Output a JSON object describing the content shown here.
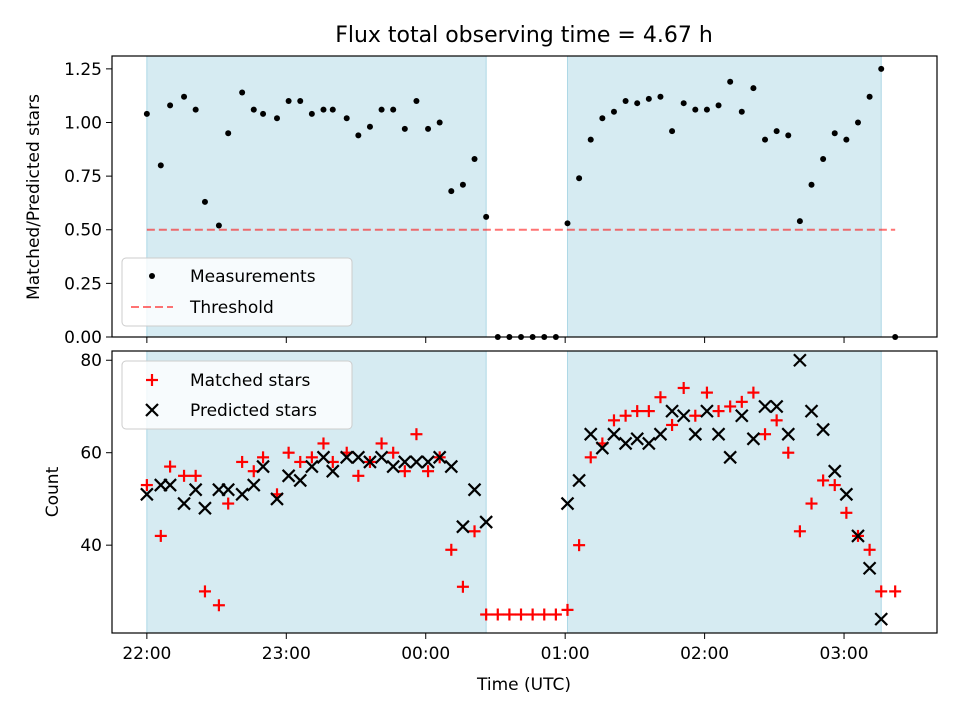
{
  "figure_title": "Flux total observing time = 4.67 h",
  "colors": {
    "shade": "#add8e6",
    "measurement": "#000000",
    "threshold": "#ff0000",
    "matched": "#ff0000",
    "predicted": "#000000"
  },
  "chart_data": [
    {
      "type": "scatter",
      "panel": "top",
      "ylabel": "Matched/Predicted stars",
      "ylim": [
        0,
        1.31
      ],
      "yticks": [
        "0.00",
        "0.25",
        "0.50",
        "0.75",
        "1.00",
        "1.25"
      ],
      "xlim": [
        "21:45",
        "03:40"
      ],
      "shaded_intervals": [
        [
          "22:00",
          "00:26"
        ],
        [
          "01:01",
          "03:16"
        ]
      ],
      "threshold": 0.5,
      "threshold_range": [
        "22:00",
        "03:22"
      ],
      "legend": {
        "position": "lower-left",
        "entries": [
          "Measurements",
          "Threshold"
        ]
      },
      "series": [
        {
          "name": "Measurements",
          "x": [
            "22:00",
            "22:06",
            "22:10",
            "22:16",
            "22:21",
            "22:25",
            "22:31",
            "22:35",
            "22:41",
            "22:46",
            "22:50",
            "22:56",
            "23:01",
            "23:06",
            "23:11",
            "23:16",
            "23:20",
            "23:26",
            "23:31",
            "23:36",
            "23:41",
            "23:46",
            "23:51",
            "23:56",
            "00:01",
            "00:06",
            "00:11",
            "00:16",
            "00:21",
            "00:26",
            "00:31",
            "00:36",
            "00:41",
            "00:46",
            "00:51",
            "00:56",
            "01:01",
            "01:06",
            "01:11",
            "01:16",
            "01:21",
            "01:26",
            "01:31",
            "01:36",
            "01:41",
            "01:46",
            "01:51",
            "01:56",
            "02:01",
            "02:06",
            "02:11",
            "02:16",
            "02:21",
            "02:26",
            "02:31",
            "02:36",
            "02:41",
            "02:46",
            "02:51",
            "02:56",
            "03:01",
            "03:06",
            "03:11",
            "03:16",
            "03:22"
          ],
          "y": [
            1.04,
            0.8,
            1.08,
            1.12,
            1.06,
            0.63,
            0.52,
            0.95,
            1.14,
            1.06,
            1.04,
            1.02,
            1.1,
            1.1,
            1.04,
            1.06,
            1.06,
            1.02,
            0.94,
            0.98,
            1.06,
            1.06,
            0.97,
            1.1,
            0.97,
            1.0,
            0.68,
            0.71,
            0.83,
            0.56,
            0.0,
            0.0,
            0.0,
            0.0,
            0.0,
            0.0,
            0.53,
            0.74,
            0.92,
            1.02,
            1.05,
            1.1,
            1.09,
            1.11,
            1.12,
            0.96,
            1.09,
            1.06,
            1.06,
            1.08,
            1.19,
            1.05,
            1.16,
            0.92,
            0.96,
            0.94,
            0.54,
            0.71,
            0.83,
            0.95,
            0.92,
            1.0,
            1.12,
            1.25,
            0.0
          ]
        }
      ]
    },
    {
      "type": "scatter",
      "panel": "bottom",
      "xlabel": "Time (UTC)",
      "ylabel": "Count",
      "ylim": [
        21,
        82
      ],
      "yticks": [
        "40",
        "60",
        "80"
      ],
      "xticks": [
        "22:00",
        "23:00",
        "00:00",
        "01:00",
        "02:00",
        "03:00"
      ],
      "xlim": [
        "21:45",
        "03:40"
      ],
      "shaded_intervals": [
        [
          "22:00",
          "00:26"
        ],
        [
          "01:01",
          "03:16"
        ]
      ],
      "legend": {
        "position": "upper-left",
        "entries": [
          "Matched stars",
          "Predicted stars"
        ]
      },
      "series": [
        {
          "name": "Matched stars",
          "x": [
            "22:00",
            "22:06",
            "22:10",
            "22:16",
            "22:21",
            "22:25",
            "22:31",
            "22:35",
            "22:41",
            "22:46",
            "22:50",
            "22:56",
            "23:01",
            "23:06",
            "23:11",
            "23:16",
            "23:20",
            "23:26",
            "23:31",
            "23:36",
            "23:41",
            "23:46",
            "23:51",
            "23:56",
            "00:01",
            "00:06",
            "00:11",
            "00:16",
            "00:21",
            "00:26",
            "00:31",
            "00:36",
            "00:41",
            "00:46",
            "00:51",
            "00:56",
            "01:01",
            "01:06",
            "01:11",
            "01:16",
            "01:21",
            "01:26",
            "01:31",
            "01:36",
            "01:41",
            "01:46",
            "01:51",
            "01:56",
            "02:01",
            "02:06",
            "02:11",
            "02:16",
            "02:21",
            "02:26",
            "02:31",
            "02:36",
            "02:41",
            "02:46",
            "02:51",
            "02:56",
            "03:01",
            "03:06",
            "03:11",
            "03:16",
            "03:22"
          ],
          "y": [
            53,
            42,
            57,
            55,
            55,
            30,
            27,
            49,
            58,
            56,
            59,
            51,
            60,
            58,
            59,
            62,
            58,
            60,
            55,
            58,
            62,
            60,
            56,
            64,
            56,
            59,
            39,
            31,
            43,
            25,
            25,
            25,
            25,
            25,
            25,
            25,
            26,
            40,
            59,
            62,
            67,
            68,
            69,
            69,
            72,
            66,
            74,
            68,
            73,
            69,
            70,
            71,
            73,
            64,
            67,
            60,
            43,
            49,
            54,
            53,
            47,
            42,
            39,
            30,
            30
          ]
        },
        {
          "name": "Predicted stars",
          "x": [
            "22:00",
            "22:06",
            "22:10",
            "22:16",
            "22:21",
            "22:25",
            "22:31",
            "22:35",
            "22:41",
            "22:46",
            "22:50",
            "22:56",
            "23:01",
            "23:06",
            "23:11",
            "23:16",
            "23:20",
            "23:26",
            "23:31",
            "23:36",
            "23:41",
            "23:46",
            "23:51",
            "23:56",
            "00:01",
            "00:06",
            "00:11",
            "00:16",
            "00:21",
            "00:26",
            "01:01",
            "01:06",
            "01:11",
            "01:16",
            "01:21",
            "01:26",
            "01:31",
            "01:36",
            "01:41",
            "01:46",
            "01:51",
            "01:56",
            "02:01",
            "02:06",
            "02:11",
            "02:16",
            "02:21",
            "02:26",
            "02:31",
            "02:36",
            "02:41",
            "02:46",
            "02:51",
            "02:56",
            "03:01",
            "03:06",
            "03:11",
            "03:16"
          ],
          "y": [
            51,
            53,
            53,
            49,
            52,
            48,
            52,
            52,
            51,
            53,
            57,
            50,
            55,
            54,
            57,
            59,
            56,
            59,
            59,
            58,
            59,
            57,
            58,
            58,
            58,
            59,
            57,
            44,
            52,
            45,
            49,
            54,
            64,
            61,
            64,
            62,
            63,
            62,
            64,
            69,
            68,
            64,
            69,
            64,
            59,
            68,
            63,
            70,
            70,
            64,
            80,
            69,
            65,
            56,
            51,
            42,
            35,
            24
          ]
        }
      ]
    }
  ]
}
